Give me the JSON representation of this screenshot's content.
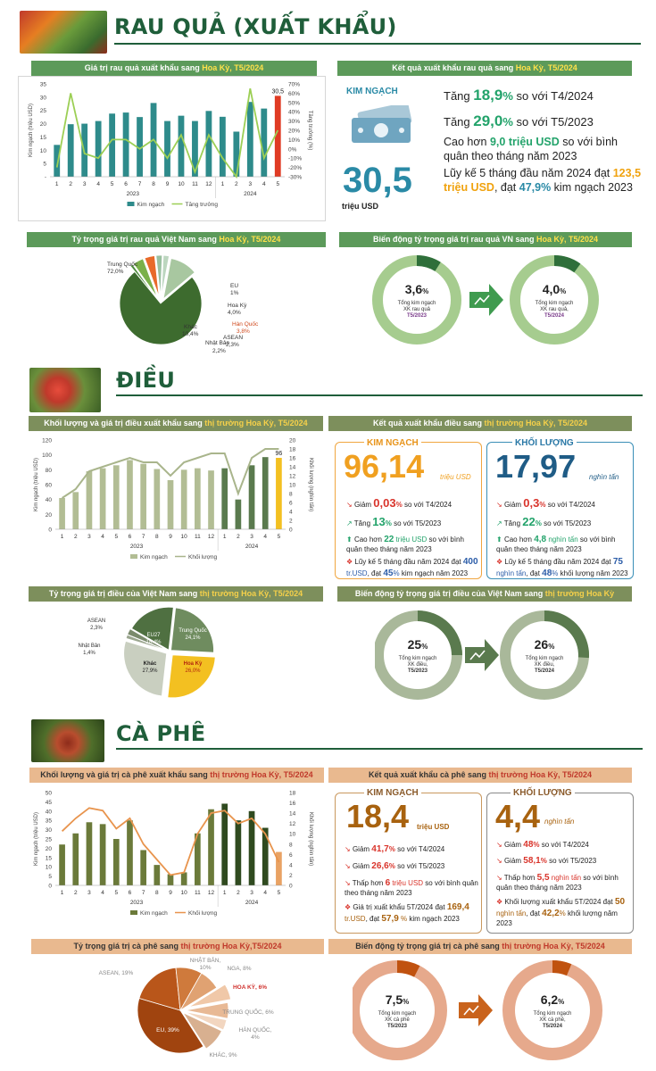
{
  "rau": {
    "title": "RAU QUẢ (XUẤT KHẨU)",
    "chart1_title_pre": "Giá trị rau quả xuất khẩu sang ",
    "chart1_title_hl": "Hoa Kỳ, T5/2024",
    "chart1_ylabel": "Kim ngạch (triệu USD)",
    "chart1_y2label": "Tăng trưởng (%)",
    "chart1_legend": [
      "Kim ngạch",
      "Tăng trưởng"
    ],
    "chart1_top_label": "30,5",
    "result_title_pre": "Kết quả xuất khẩu rau quả sang ",
    "result_title_hl": "Hoa Kỳ, T5/2024",
    "kim_ngach": "KIM NGẠCH",
    "value": "30,5",
    "unit": "triệu USD",
    "l1a": "Tăng ",
    "l1b": "18,9",
    "l1c": "%",
    "l1d": " so với T4/2024",
    "l2a": "Tăng ",
    "l2b": "29,0",
    "l2c": "%",
    "l2d": " so với T5/2023",
    "l3a": "Cao hơn ",
    "l3b": "9,0 triệu USD",
    "l3c": " so với bình quân theo tháng năm 2023",
    "l4a": "Lũy kế 5 tháng đầu năm 2024 đạt ",
    "l4b": "123,5 triệu USD",
    "l4c": ", đạt ",
    "l4d": "47,9%",
    "l4e": " kim ngạch 2023",
    "pie_title_pre": "Tỷ trọng giá trị rau quả Việt Nam sang ",
    "pie_title_hl": "Hoa Kỳ, T5/2024",
    "pie_labels": [
      "Trung Quốc",
      "72,0%",
      "EU",
      "1%",
      "Hoa Kỳ",
      "4,0%",
      "Hàn Quốc",
      "3,8%",
      "Khác",
      "10,4%",
      "Nhật Bản",
      "2,2%",
      "ASEAN",
      "2,3%"
    ],
    "shift_title_pre": "Biến động tỷ trọng giá trị rau quả VN sang ",
    "shift_title_hl": "Hoa Kỳ, T5/2024",
    "d1_val": "3,6",
    "d1_pct": "%",
    "d1_t1": "Tổng kim ngạch",
    "d1_t2": "XK rau quả",
    "d1_t3": "T5/2023",
    "d2_val": "4,0",
    "d2_pct": "%",
    "d2_t1": "Tổng kim ngạch",
    "d2_t2": "XK rau quả,",
    "d2_t3": "T5/2024"
  },
  "dieu": {
    "title": "ĐIỀU",
    "chart_title_pre": "Khối lượng và giá trị điều xuất khẩu sang ",
    "chart_title_hl": "thị trường Hoa Kỳ, T5/2024",
    "ylabel": "Kim ngạch (triệu USD)",
    "y2label": "Khối lượng (nghìn tấn)",
    "legend": [
      "Kim ngạch",
      "Khối lượng"
    ],
    "top_label": "96",
    "result_title_pre": "Kết quả xuất khẩu điều sang ",
    "result_title_hl": "thị trường Hoa Kỳ, T5/2024",
    "kn_head": "KIM NGẠCH",
    "kn_val": "96,14",
    "kn_unit": "triệu USD",
    "kn1a": "Giảm ",
    "kn1b": "0,03",
    "kn1c": "%",
    "kn1d": " so với T4/2024",
    "kn2a": "Tăng ",
    "kn2b": "13",
    "kn2c": "%",
    "kn2d": " so với T5/2023",
    "kn3a": "Cao hơn ",
    "kn3b": "22",
    "kn3c": " triệu USD",
    "kn3d": " so với bình quân theo tháng năm 2023",
    "kn4a": "Lũy kế 5 tháng đầu năm 2024 đạt ",
    "kn4b": "400",
    "kn4c": "tr.USD",
    "kn4d": ", đạt ",
    "kn4e": "45",
    "kn4f": "%",
    "kn4g": " kim ngạch năm 2023",
    "kl_head": "KHỐI LƯỢNG",
    "kl_val": "17,97",
    "kl_unit": "nghìn tấn",
    "kl1a": "Giảm ",
    "kl1b": "0,3",
    "kl1c": "%",
    "kl1d": " so với T4/2024",
    "kl2a": "Tăng ",
    "kl2b": "22",
    "kl2c": "%",
    "kl2d": " so với T5/2023",
    "kl3a": "Cao hơn ",
    "kl3b": "4,8",
    "kl3c": " nghìn tấn",
    "kl3d": " so với bình quân theo tháng năm 2023",
    "kl4a": "Lũy kế 5 tháng đầu năm 2024 đạt ",
    "kl4b": "75",
    "kl4c": "nghìn tấn",
    "kl4d": ", đạt ",
    "kl4e": "48",
    "kl4f": "%",
    "kl4g": " khối lượng năm 2023",
    "pie_title_pre": "Tỷ trọng giá trị điều của Việt Nam sang ",
    "pie_title_hl": "thị trường Hoa Kỳ, T5/2024",
    "pie_labels": [
      "ASEAN",
      "2,3%",
      "Nhật Bản",
      "1,4%",
      "EU27",
      "18,4%",
      "Trung Quốc",
      "24,1%",
      "Khác",
      "27,9%",
      "Hoa Kỳ",
      "26,0%"
    ],
    "shift_title_pre": "Biến động tỷ trọng giá trị điều của Việt Nam sang ",
    "shift_title_hl": "thị trường Hoa Kỳ",
    "d1_val": "25",
    "d1_pct": "%",
    "d1_t1": "Tổng kim ngạch",
    "d1_t2": "XK điều,",
    "d1_t3": "T5/2023",
    "d2_val": "26",
    "d2_pct": "%",
    "d2_t1": "Tổng kim ngạch",
    "d2_t2": "XK điều,",
    "d2_t3": "T5/2024"
  },
  "caphe": {
    "title": "CÀ PHÊ",
    "chart_title_pre": "Khối lượng và giá trị cà phê xuất khẩu sang ",
    "chart_title_hl": "thị trường Hoa Kỳ, T5/2024",
    "ylabel": "Kim ngạch (triệu USD)",
    "y2label": "Khối lượng (nghìn tấn)",
    "legend": [
      "Kim ngạch",
      "Khối lượng"
    ],
    "result_title_pre": "Kết quả xuất khẩu cà phê sang ",
    "result_title_hl": "thị trường Hoa Kỳ, T5/2024",
    "kn_head": "KIM NGẠCH",
    "kn_val": "18,4",
    "kn_unit": "triệu USD",
    "kn1a": "Giảm ",
    "kn1b": "41,7",
    "kn1c": "%",
    "kn1d": " so với T4/2024",
    "kn2a": "Giảm ",
    "kn2b": "26,6",
    "kn2c": "%",
    "kn2d": " so với T5/2023",
    "kn3a": "Thấp hơn ",
    "kn3b": "6",
    "kn3c": " triệu USD",
    "kn3d": " so với bình quân theo tháng năm 2023",
    "kn4a": "Giá trị xuất khẩu 5T/2024 đạt ",
    "kn4b": "169,4",
    "kn4c": "tr.USD",
    "kn4d": ", đạt ",
    "kn4e": "57,9",
    "kn4f": " %",
    "kn4g": " kim ngạch 2023",
    "kl_head": "KHỐI LƯỢNG",
    "kl_val": "4,4",
    "kl_unit": "nghìn tấn",
    "kl1a": "Giảm ",
    "kl1b": "48",
    "kl1c": "%",
    "kl1d": " so với T4/2024",
    "kl2a": "Giảm ",
    "kl2b": "58,1",
    "kl2c": "%",
    "kl2d": " so với T5/2023",
    "kl3a": "Thấp hơn ",
    "kl3b": "5,5",
    "kl3c": " nghìn tấn",
    "kl3d": " so với bình quân theo tháng năm 2023",
    "kl4a": "Khối lượng xuất khẩu 5T/2024 đạt ",
    "kl4b": "50",
    "kl4c": "nghìn tấn",
    "kl4d": ", đạt ",
    "kl4e": "42,2",
    "kl4f": "%",
    "kl4g": " khối lượng năm 2023",
    "pie_title_pre": "Tỷ trọng giá trị cà phê sang ",
    "pie_title_hl": "thị trường Hoa Kỳ,T5/2024",
    "pie_labels": [
      "NHẬT BẢN,",
      "10%",
      "NGA, 8%",
      "ASEAN, 19%",
      "HOA KỲ, 6%",
      "TRUNG QUỐC, 6%",
      "HÀN QUỐC,",
      "4%",
      "EU, 39%",
      "KHÁC, 9%"
    ],
    "shift_title_pre": "Biến động tỷ trọng giá trị cà phê sang ",
    "shift_title_hl": "thị trường Hoa Kỳ, T5/2024",
    "d1_val": "7,5",
    "d1_pct": "%",
    "d1_t1": "Tổng kim ngạch",
    "d1_t2": "XK cà phê",
    "d1_t3": "T5/2023",
    "d2_val": "6,2",
    "d2_pct": "%",
    "d2_t1": "Tổng kim ngạch",
    "d2_t2": "XK cà phê,",
    "d2_t3": "T5/2024"
  },
  "chart_data": [
    {
      "type": "bar",
      "id": "rau_combo",
      "categories": [
        "1",
        "2",
        "3",
        "4",
        "5",
        "6",
        "7",
        "8",
        "9",
        "10",
        "11",
        "12",
        "1",
        "2",
        "3",
        "4",
        "5"
      ],
      "groups": [
        "2023",
        "2024"
      ],
      "series": [
        {
          "name": "Kim ngạch",
          "values": [
            12,
            19.8,
            20,
            21,
            23.8,
            24.2,
            22.5,
            27.8,
            21,
            23,
            21,
            24.8,
            22.6,
            17,
            28.2,
            25.7,
            30.5
          ]
        },
        {
          "name": "Tăng trưởng",
          "values": [
            -20,
            60,
            -5,
            -10,
            10,
            10,
            0,
            10,
            -10,
            15,
            -25,
            15,
            -10,
            -30,
            65,
            -10,
            20
          ]
        }
      ],
      "ylim": [
        0,
        35
      ],
      "y2lim": [
        -30,
        70
      ],
      "yticks": [
        "-",
        "5",
        "10",
        "15",
        "20",
        "25",
        "30",
        "35"
      ],
      "y2ticks": [
        "-30%",
        "-20%",
        "-10%",
        "0%",
        "10%",
        "20%",
        "30%",
        "40%",
        "50%",
        "60%",
        "70%"
      ]
    },
    {
      "type": "pie",
      "id": "rau_pie",
      "slices": [
        {
          "label": "Trung Quốc",
          "value": 72.0
        },
        {
          "label": "EU",
          "value": 1
        },
        {
          "label": "Hoa Kỳ",
          "value": 4.0
        },
        {
          "label": "Hàn Quốc",
          "value": 3.8
        },
        {
          "label": "ASEAN",
          "value": 2.3
        },
        {
          "label": "Nhật Bản",
          "value": 2.2
        },
        {
          "label": "Khác",
          "value": 10.4
        }
      ]
    },
    {
      "type": "bar",
      "id": "dieu_combo",
      "categories": [
        "1",
        "2",
        "3",
        "4",
        "5",
        "6",
        "7",
        "8",
        "9",
        "10",
        "11",
        "12",
        "1",
        "2",
        "3",
        "4",
        "5"
      ],
      "groups": [
        "2023",
        "2024"
      ],
      "series": [
        {
          "name": "Kim ngạch",
          "values": [
            42,
            50,
            78,
            82,
            86,
            93,
            88,
            81,
            66,
            80,
            82,
            79,
            82,
            40,
            86,
            97,
            96
          ]
        },
        {
          "name": "Khối lượng",
          "values": [
            7,
            9,
            13,
            14,
            15,
            16,
            15,
            15,
            12,
            15,
            16,
            17,
            17,
            8,
            16,
            18,
            18
          ]
        }
      ],
      "ylim": [
        0,
        120
      ],
      "y2lim": [
        0,
        20
      ],
      "yticks": [
        "0",
        "20",
        "40",
        "60",
        "80",
        "100",
        "120"
      ],
      "y2ticks": [
        "0",
        "2",
        "4",
        "6",
        "8",
        "10",
        "12",
        "14",
        "16",
        "18",
        "20"
      ]
    },
    {
      "type": "pie",
      "id": "dieu_pie",
      "slices": [
        {
          "label": "Hoa Kỳ",
          "value": 26.0
        },
        {
          "label": "Khác",
          "value": 27.9
        },
        {
          "label": "Nhật Bản",
          "value": 1.4
        },
        {
          "label": "ASEAN",
          "value": 2.3
        },
        {
          "label": "EU27",
          "value": 18.4
        },
        {
          "label": "Trung Quốc",
          "value": 24.1
        }
      ]
    },
    {
      "type": "bar",
      "id": "caphe_combo",
      "categories": [
        "1",
        "2",
        "3",
        "4",
        "5",
        "6",
        "7",
        "8",
        "9",
        "10",
        "11",
        "12",
        "1",
        "2",
        "3",
        "4",
        "5"
      ],
      "groups": [
        "2023",
        "2024"
      ],
      "series": [
        {
          "name": "Kim ngạch",
          "values": [
            22,
            28,
            34,
            33,
            25,
            35,
            19,
            11,
            6,
            7,
            28,
            41,
            44,
            35,
            40,
            31,
            18
          ]
        },
        {
          "name": "Khối lượng",
          "values": [
            10.5,
            13,
            15,
            14.5,
            11,
            13,
            8,
            5,
            2,
            2.5,
            10,
            14,
            14.5,
            12,
            13,
            10,
            4.5
          ]
        }
      ],
      "ylim": [
        0,
        50
      ],
      "y2lim": [
        0,
        18
      ],
      "yticks": [
        "0",
        "5",
        "10",
        "15",
        "20",
        "25",
        "30",
        "35",
        "40",
        "45",
        "50"
      ],
      "y2ticks": [
        "0",
        "2",
        "4",
        "6",
        "8",
        "10",
        "12",
        "14",
        "16",
        "18"
      ]
    },
    {
      "type": "pie",
      "id": "caphe_pie",
      "slices": [
        {
          "label": "EU",
          "value": 39
        },
        {
          "label": "ASEAN",
          "value": 19
        },
        {
          "label": "Nhật Bản",
          "value": 10
        },
        {
          "label": "Nga",
          "value": 8
        },
        {
          "label": "Hoa Kỳ",
          "value": 6
        },
        {
          "label": "Trung Quốc",
          "value": 6
        },
        {
          "label": "Hàn Quốc",
          "value": 4
        },
        {
          "label": "Khác",
          "value": 9
        }
      ]
    }
  ],
  "donuts": {
    "rau": [
      3.6,
      4.0
    ],
    "dieu": [
      25,
      26
    ],
    "caphe": [
      7.5,
      6.2
    ]
  },
  "colors": {
    "green": "#1f5e3a",
    "rau_bar": "#2e8b8b",
    "rau_line": "#9ccf55",
    "red": "#e03b24",
    "dieu_bar": "#b2bd94",
    "dieu_dark": "#5a7a4e",
    "yellow": "#f3c021",
    "caphe_bar": "#6b7a3a",
    "caphe_dark": "#2f4a1f",
    "orange": "#e8944d",
    "brown": "#b35a12"
  }
}
